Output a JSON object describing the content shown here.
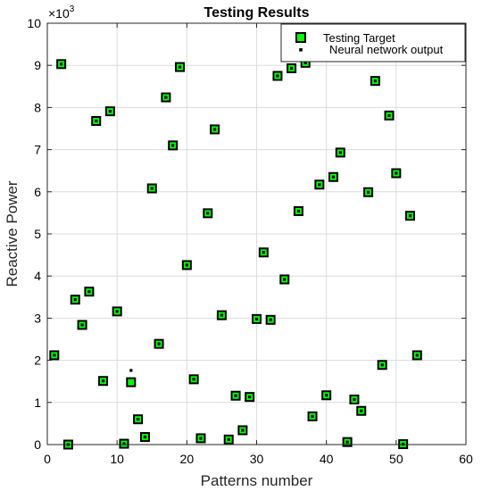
{
  "chart_data": {
    "type": "scatter",
    "title": "Testing Results",
    "xlabel": "Patterns number",
    "ylabel": "Reactive Power",
    "y_multiplier_base": "×10",
    "y_multiplier_exp": "3",
    "xlim": [
      0,
      60
    ],
    "ylim": [
      0,
      10
    ],
    "xticks": [
      "0",
      "10",
      "20",
      "30",
      "40",
      "50",
      "60"
    ],
    "yticks": [
      "0",
      "1",
      "2",
      "3",
      "4",
      "5",
      "6",
      "7",
      "8",
      "9",
      "10"
    ],
    "grid": true,
    "legend_position": "top-right",
    "series": [
      {
        "name": "Testing Target",
        "marker": "square",
        "color": "#00ff00",
        "edge_color": "#000000",
        "points": [
          [
            1,
            2.12
          ],
          [
            2,
            9.03
          ],
          [
            3,
            0.0
          ],
          [
            4,
            3.44
          ],
          [
            5,
            2.84
          ],
          [
            6,
            3.63
          ],
          [
            7,
            7.68
          ],
          [
            8,
            1.51
          ],
          [
            9,
            7.91
          ],
          [
            10,
            3.16
          ],
          [
            11,
            0.02
          ],
          [
            12,
            1.48
          ],
          [
            13,
            0.6
          ],
          [
            14,
            0.18
          ],
          [
            15,
            6.08
          ],
          [
            16,
            2.39
          ],
          [
            17,
            8.24
          ],
          [
            18,
            7.1
          ],
          [
            19,
            8.96
          ],
          [
            20,
            4.26
          ],
          [
            21,
            1.55
          ],
          [
            22,
            0.15
          ],
          [
            23,
            5.49
          ],
          [
            24,
            7.48
          ],
          [
            25,
            3.07
          ],
          [
            26,
            0.12
          ],
          [
            27,
            1.16
          ],
          [
            28,
            0.34
          ],
          [
            29,
            1.13
          ],
          [
            30,
            2.98
          ],
          [
            31,
            4.56
          ],
          [
            32,
            2.96
          ],
          [
            33,
            8.75
          ],
          [
            34,
            3.92
          ],
          [
            35,
            8.93
          ],
          [
            36,
            5.54
          ],
          [
            37,
            9.06
          ],
          [
            38,
            0.67
          ],
          [
            39,
            6.17
          ],
          [
            40,
            1.17
          ],
          [
            41,
            6.35
          ],
          [
            42,
            6.93
          ],
          [
            43,
            0.06
          ],
          [
            44,
            1.07
          ],
          [
            45,
            0.8
          ],
          [
            46,
            5.99
          ],
          [
            47,
            8.63
          ],
          [
            48,
            1.89
          ],
          [
            49,
            7.81
          ],
          [
            50,
            6.44
          ],
          [
            51,
            0.01
          ],
          [
            52,
            5.43
          ],
          [
            53,
            2.12
          ]
        ]
      },
      {
        "name": "Neural network output",
        "marker": "dot",
        "color": "#000000",
        "points": [
          [
            1,
            2.12
          ],
          [
            2,
            9.03
          ],
          [
            3,
            0.0
          ],
          [
            4,
            3.44
          ],
          [
            5,
            2.84
          ],
          [
            6,
            3.63
          ],
          [
            7,
            7.68
          ],
          [
            8,
            1.51
          ],
          [
            9,
            7.91
          ],
          [
            10,
            3.16
          ],
          [
            11,
            0.02
          ],
          [
            12,
            1.76
          ],
          [
            13,
            0.6
          ],
          [
            14,
            0.18
          ],
          [
            15,
            6.08
          ],
          [
            16,
            2.39
          ],
          [
            17,
            8.24
          ],
          [
            18,
            7.1
          ],
          [
            19,
            8.96
          ],
          [
            20,
            4.26
          ],
          [
            21,
            1.55
          ],
          [
            22,
            0.15
          ],
          [
            23,
            5.49
          ],
          [
            24,
            7.48
          ],
          [
            25,
            3.07
          ],
          [
            26,
            0.12
          ],
          [
            27,
            1.16
          ],
          [
            28,
            0.34
          ],
          [
            29,
            1.13
          ],
          [
            30,
            2.98
          ],
          [
            31,
            4.56
          ],
          [
            32,
            2.96
          ],
          [
            33,
            8.75
          ],
          [
            34,
            3.92
          ],
          [
            35,
            8.93
          ],
          [
            36,
            5.54
          ],
          [
            37,
            9.06
          ],
          [
            38,
            0.67
          ],
          [
            39,
            6.17
          ],
          [
            40,
            1.17
          ],
          [
            41,
            6.35
          ],
          [
            42,
            6.93
          ],
          [
            43,
            0.06
          ],
          [
            44,
            1.07
          ],
          [
            45,
            0.8
          ],
          [
            46,
            5.99
          ],
          [
            47,
            8.63
          ],
          [
            48,
            1.89
          ],
          [
            49,
            7.81
          ],
          [
            50,
            6.44
          ],
          [
            51,
            0.01
          ],
          [
            52,
            5.43
          ],
          [
            53,
            2.12
          ]
        ]
      }
    ]
  }
}
